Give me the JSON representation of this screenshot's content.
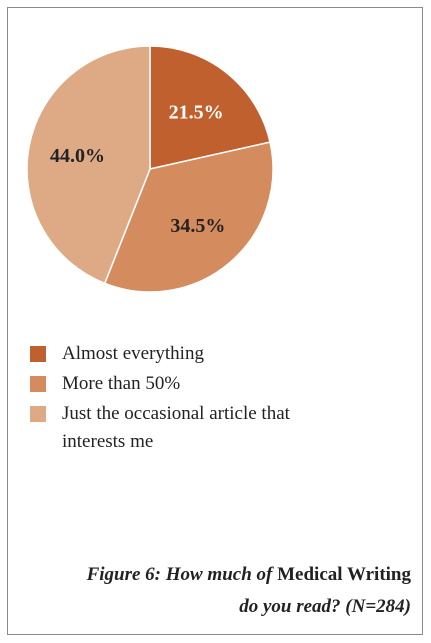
{
  "chart_data": {
    "type": "pie",
    "slices": [
      {
        "label": "Almost everything",
        "value": 21.5,
        "value_label": "21.5%",
        "color": "#c0602e"
      },
      {
        "label": "More than 50%",
        "value": 34.5,
        "value_label": "34.5%",
        "color": "#d48b5e"
      },
      {
        "label": "Just the occasional article that interests me",
        "value": 44.0,
        "value_label": "44.0%",
        "color": "#dea985"
      }
    ],
    "legend_placement": "bottom-left",
    "label_colors": [
      "#ffffff",
      "#222222",
      "#222222"
    ]
  },
  "caption": {
    "part1": "Figure 6: How much of ",
    "journal": "Medical Writing",
    "part2": "do you read? (N=284)"
  }
}
